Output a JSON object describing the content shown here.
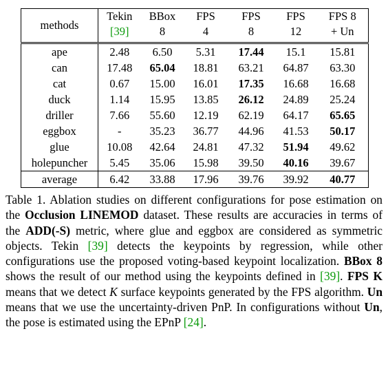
{
  "table": {
    "header": [
      {
        "lines": [
          {
            "text": "methods"
          }
        ]
      },
      {
        "lines": [
          {
            "text": "Tekin"
          },
          {
            "text": "[39]",
            "style": "cite"
          }
        ]
      },
      {
        "lines": [
          {
            "text": "BBox"
          },
          {
            "text": "8"
          }
        ]
      },
      {
        "lines": [
          {
            "text": "FPS"
          },
          {
            "text": "4"
          }
        ]
      },
      {
        "lines": [
          {
            "text": "FPS"
          },
          {
            "text": "8"
          }
        ]
      },
      {
        "lines": [
          {
            "text": "FPS"
          },
          {
            "text": "12"
          }
        ]
      },
      {
        "lines": [
          {
            "text": "FPS 8"
          },
          {
            "text": "+ Un"
          }
        ]
      }
    ],
    "rows": [
      {
        "label": "ape",
        "cells": [
          {
            "text": "2.48"
          },
          {
            "text": "6.50"
          },
          {
            "text": "5.31"
          },
          {
            "text": "17.44",
            "bold": true
          },
          {
            "text": "15.1"
          },
          {
            "text": "15.81"
          }
        ]
      },
      {
        "label": "can",
        "cells": [
          {
            "text": "17.48"
          },
          {
            "text": "65.04",
            "bold": true
          },
          {
            "text": "18.81"
          },
          {
            "text": "63.21"
          },
          {
            "text": "64.87"
          },
          {
            "text": "63.30"
          }
        ]
      },
      {
        "label": "cat",
        "cells": [
          {
            "text": "0.67"
          },
          {
            "text": "15.00"
          },
          {
            "text": "16.01"
          },
          {
            "text": "17.35",
            "bold": true
          },
          {
            "text": "16.68"
          },
          {
            "text": "16.68"
          }
        ]
      },
      {
        "label": "duck",
        "cells": [
          {
            "text": "1.14"
          },
          {
            "text": "15.95"
          },
          {
            "text": "13.85"
          },
          {
            "text": "26.12",
            "bold": true
          },
          {
            "text": "24.89"
          },
          {
            "text": "25.24"
          }
        ]
      },
      {
        "label": "driller",
        "cells": [
          {
            "text": "7.66"
          },
          {
            "text": "55.60"
          },
          {
            "text": "12.19"
          },
          {
            "text": "62.19"
          },
          {
            "text": "64.17"
          },
          {
            "text": "65.65",
            "bold": true
          }
        ]
      },
      {
        "label": "eggbox",
        "cells": [
          {
            "text": "-"
          },
          {
            "text": "35.23"
          },
          {
            "text": "36.77"
          },
          {
            "text": "44.96"
          },
          {
            "text": "41.53"
          },
          {
            "text": "50.17",
            "bold": true
          }
        ]
      },
      {
        "label": "glue",
        "cells": [
          {
            "text": "10.08"
          },
          {
            "text": "42.64"
          },
          {
            "text": "24.81"
          },
          {
            "text": "47.32"
          },
          {
            "text": "51.94",
            "bold": true
          },
          {
            "text": "49.62"
          }
        ]
      },
      {
        "label": "holepuncher",
        "cells": [
          {
            "text": "5.45"
          },
          {
            "text": "35.06"
          },
          {
            "text": "15.98"
          },
          {
            "text": "39.50"
          },
          {
            "text": "40.16",
            "bold": true
          },
          {
            "text": "39.67"
          }
        ]
      }
    ],
    "average_row": {
      "label": "average",
      "cells": [
        {
          "text": "6.42"
        },
        {
          "text": "33.88"
        },
        {
          "text": "17.96"
        },
        {
          "text": "39.76"
        },
        {
          "text": "39.92"
        },
        {
          "text": "40.77",
          "bold": true
        }
      ]
    }
  },
  "caption": [
    {
      "text": "Table 1. Ablation studies on different configurations for pose estimation on the "
    },
    {
      "text": "Occlusion LINEMOD",
      "style": "bold"
    },
    {
      "text": " dataset. These results are accuracies in terms of the "
    },
    {
      "text": "ADD(-S)",
      "style": "bold"
    },
    {
      "text": " metric, where glue and eggbox are considered as symmetric objects. Tekin "
    },
    {
      "text": "[39]",
      "style": "cite"
    },
    {
      "text": " detects the keypoints by regression, while other configurations use the proposed voting-based keypoint localization. "
    },
    {
      "text": "BBox 8",
      "style": "bold"
    },
    {
      "text": " shows the result of our method using the keypoints defined in "
    },
    {
      "text": "[39]",
      "style": "cite"
    },
    {
      "text": ". "
    },
    {
      "text": "FPS K",
      "style": "bold"
    },
    {
      "text": " means that we detect "
    },
    {
      "text": "K",
      "style": "italic"
    },
    {
      "text": " surface keypoints generated by the FPS algorithm. "
    },
    {
      "text": "Un",
      "style": "bold"
    },
    {
      "text": " means that we use the uncertainty-driven PnP. In configurations without "
    },
    {
      "text": "Un",
      "style": "bold"
    },
    {
      "text": ", the pose is estimated using the EPnP "
    },
    {
      "text": "[24]",
      "style": "cite"
    },
    {
      "text": "."
    }
  ]
}
